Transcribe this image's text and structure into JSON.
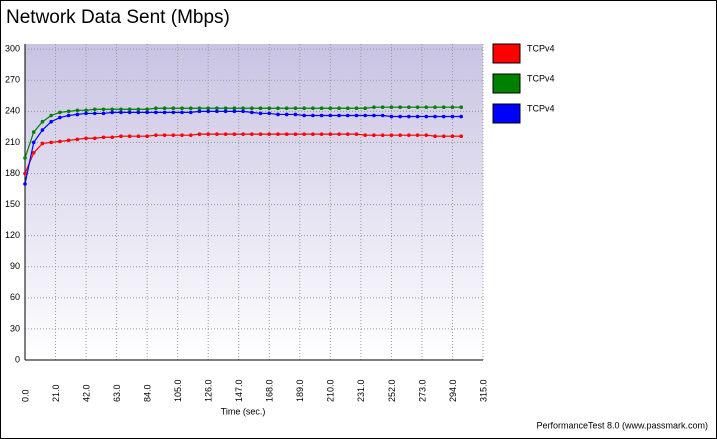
{
  "chart_data": {
    "type": "line",
    "title": "Network Data Sent (Mbps)",
    "x_label": "Time (sec.)",
    "footer": "PerformanceTest 8.0 (www.passmark.com)",
    "x": [
      0,
      6,
      12,
      18,
      24,
      30,
      36,
      42,
      48,
      54,
      60,
      66,
      72,
      78,
      84,
      90,
      96,
      102,
      108,
      114,
      120,
      126,
      132,
      138,
      144,
      150,
      156,
      162,
      168,
      174,
      180,
      186,
      192,
      198,
      204,
      210,
      216,
      222,
      228,
      234,
      240,
      246,
      252,
      258,
      264,
      270,
      276,
      282,
      288,
      294,
      300
    ],
    "series": [
      {
        "name": "TCPv4",
        "color": "#ff0000",
        "values": [
          180,
          200,
          209,
          210,
          211,
          212,
          213,
          214,
          214,
          215,
          215,
          216,
          216,
          216,
          216,
          217,
          217,
          217,
          217,
          217,
          218,
          218,
          218,
          218,
          218,
          218,
          218,
          218,
          218,
          218,
          218,
          218,
          218,
          218,
          218,
          218,
          218,
          218,
          218,
          217,
          217,
          217,
          217,
          217,
          217,
          217,
          217,
          216,
          216,
          216,
          216
        ]
      },
      {
        "name": "TCPv4",
        "color": "#008000",
        "values": [
          195,
          220,
          230,
          236,
          239,
          240,
          241,
          241,
          242,
          242,
          242,
          242,
          242,
          242,
          242,
          243,
          243,
          243,
          243,
          243,
          243,
          243,
          243,
          243,
          243,
          243,
          243,
          243,
          243,
          243,
          243,
          243,
          243,
          243,
          243,
          243,
          243,
          243,
          243,
          243,
          244,
          244,
          244,
          244,
          244,
          244,
          244,
          244,
          244,
          244,
          244
        ]
      },
      {
        "name": "TCPv4",
        "color": "#0000ff",
        "values": [
          170,
          210,
          222,
          230,
          234,
          236,
          237,
          238,
          238,
          238,
          239,
          239,
          239,
          239,
          239,
          239,
          239,
          239,
          239,
          239,
          240,
          240,
          240,
          240,
          240,
          240,
          239,
          238,
          238,
          237,
          237,
          237,
          236,
          236,
          236,
          236,
          236,
          236,
          236,
          236,
          236,
          236,
          235,
          235,
          235,
          235,
          235,
          235,
          235,
          235,
          235
        ]
      }
    ],
    "xlim": [
      0,
      315
    ],
    "xticks": [
      {
        "value": 0,
        "label": "0.0"
      },
      {
        "value": 21,
        "label": "21.0"
      },
      {
        "value": 42,
        "label": "42.0"
      },
      {
        "value": 63,
        "label": "63.0"
      },
      {
        "value": 84,
        "label": "84.0"
      },
      {
        "value": 105,
        "label": "105.0"
      },
      {
        "value": 126,
        "label": "126.0"
      },
      {
        "value": 147,
        "label": "147.0"
      },
      {
        "value": 168,
        "label": "168.0"
      },
      {
        "value": 189,
        "label": "189.0"
      },
      {
        "value": 210,
        "label": "210.0"
      },
      {
        "value": 231,
        "label": "231.0"
      },
      {
        "value": 252,
        "label": "252.0"
      },
      {
        "value": 273,
        "label": "273.0"
      },
      {
        "value": 294,
        "label": "294.0"
      },
      {
        "value": 315,
        "label": "315.0"
      }
    ],
    "ylim": [
      0,
      305
    ],
    "yticks": [
      0,
      30,
      60,
      90,
      120,
      150,
      180,
      210,
      240,
      270,
      300
    ],
    "grid": true,
    "legend": "right"
  }
}
